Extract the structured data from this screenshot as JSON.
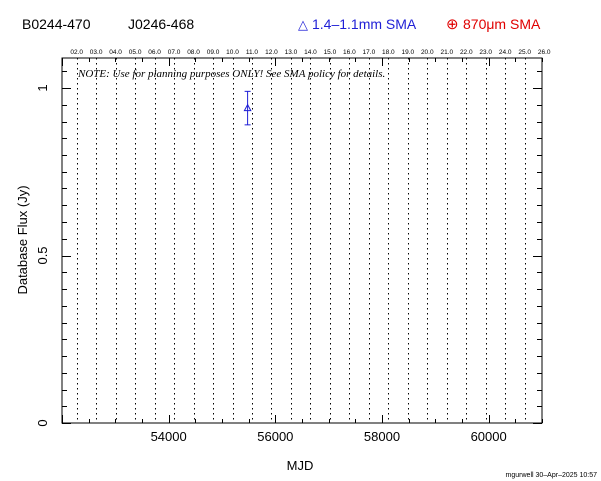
{
  "header": {
    "source_name": "B0244-470",
    "alt_name": "J0246-468",
    "legend_blue_symbol": "△",
    "legend_blue_label": "1.4–1.1mm SMA",
    "legend_red_symbol": "⊕",
    "legend_red_label": "870μm SMA"
  },
  "footer": {
    "credit": "mgurwell 30–Apr–2025 10:57"
  },
  "colors": {
    "blue": "#1f1fd6",
    "red": "#e00000",
    "axis": "#000000"
  },
  "chart_data": {
    "type": "scatter",
    "xlabel": "MJD",
    "ylabel": "Database Flux (Jy)",
    "xlim": [
      52000,
      61000
    ],
    "ylim": [
      0,
      1.05
    ],
    "x_ticks": [
      54000,
      56000,
      58000,
      60000
    ],
    "x_tick_labels": [
      "54000",
      "56000",
      "58000",
      "60000"
    ],
    "y_ticks": [
      0,
      0.5,
      1
    ],
    "y_tick_labels": [
      "0",
      "0.5",
      "1"
    ],
    "note": "NOTE: Use for planning purposes ONLY!  See SMA policy for details.",
    "year_lines_mjd": [
      52275,
      52640,
      53005,
      53371,
      53736,
      54101,
      54466,
      54832,
      55197,
      55562,
      55927,
      56293,
      56658,
      57023,
      57388,
      57754,
      58119,
      58484,
      58849,
      59215,
      59580,
      59945,
      60310,
      60676
    ],
    "year_labels": [
      "02.0",
      "03.0",
      "04.0",
      "05.0",
      "06.0",
      "07.0",
      "08.0",
      "09.0",
      "10.0",
      "11.0",
      "12.0",
      "13.0",
      "14.0",
      "15.0",
      "16.0",
      "17.0",
      "18.0",
      "19.0",
      "20.0",
      "21.0",
      "22.0",
      "23.0",
      "24.0",
      "25.0",
      "26.0"
    ],
    "year_label_mjd": [
      52275,
      52640,
      53005,
      53371,
      53736,
      54101,
      54466,
      54832,
      55197,
      55562,
      55927,
      56293,
      56658,
      57023,
      57388,
      57754,
      58119,
      58484,
      58849,
      59215,
      59580,
      59945,
      60310,
      60676,
      61041
    ],
    "series": [
      {
        "name": "1.4–1.1mm SMA",
        "color": "#1f1fd6",
        "points": [
          {
            "x": 55480,
            "y": 0.94,
            "err": 0.05
          }
        ]
      },
      {
        "name": "870μm SMA",
        "color": "#e00000",
        "points": []
      }
    ]
  }
}
